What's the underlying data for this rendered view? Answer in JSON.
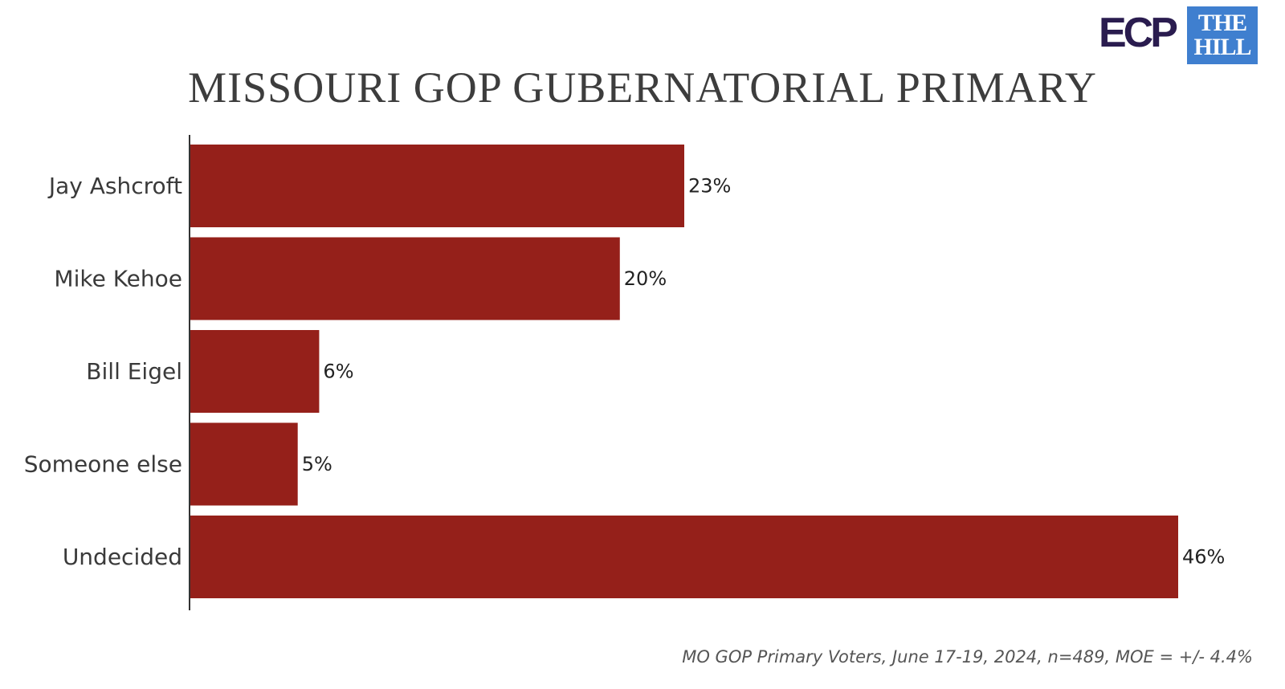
{
  "logos": {
    "ecp": "ECP",
    "hill_line1": "THE",
    "hill_line2": "HILL"
  },
  "chart_data": {
    "type": "bar",
    "orientation": "horizontal",
    "title": "MISSOURI GOP GUBERNATORIAL PRIMARY",
    "categories": [
      "Jay Ashcroft",
      "Mike Kehoe",
      "Bill Eigel",
      "Someone else",
      "Undecided"
    ],
    "values": [
      23,
      20,
      6,
      5,
      46
    ],
    "value_labels": [
      "23%",
      "20%",
      "6%",
      "5%",
      "46%"
    ],
    "xlim": [
      0,
      46
    ],
    "bar_color": "#95201a",
    "grid": false
  },
  "footnote": "MO GOP Primary Voters, June 17-19, 2024, n=489, MOE = +/- 4.4%"
}
